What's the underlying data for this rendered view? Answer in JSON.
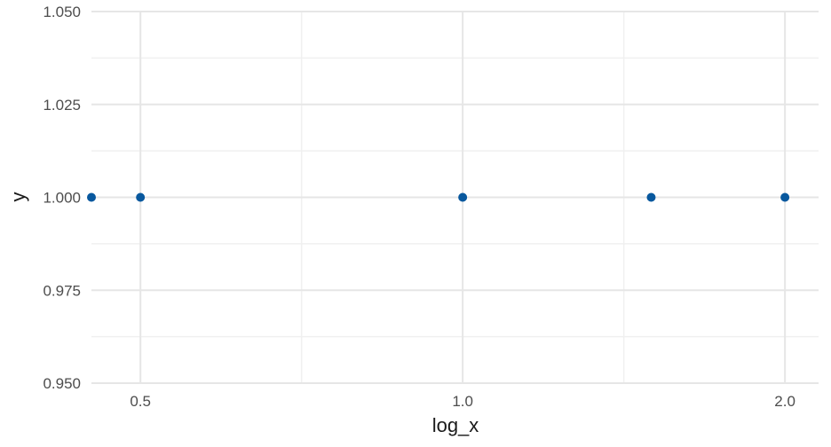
{
  "chart_data": {
    "type": "scatter",
    "title": "",
    "xlabel": "log_x",
    "ylabel": "y",
    "x_scale": "log",
    "xlim": [
      0.45,
      2.15
    ],
    "ylim": [
      0.95,
      1.05
    ],
    "x_ticks": [
      0.5,
      1.0,
      2.0
    ],
    "x_tick_labels": [
      "0.5",
      "1.0",
      "2.0"
    ],
    "y_ticks": [
      0.95,
      0.975,
      1.0,
      1.025,
      1.05
    ],
    "y_tick_labels": [
      "0.950",
      "0.975",
      "1.000",
      "1.025",
      "1.050"
    ],
    "grid": true,
    "legend": "none",
    "point_color": "#08589e",
    "points": [
      {
        "x": 0.45,
        "y": 1.0
      },
      {
        "x": 0.5,
        "y": 1.0
      },
      {
        "x": 1.0,
        "y": 1.0
      },
      {
        "x": 1.5,
        "y": 1.0
      },
      {
        "x": 2.0,
        "y": 1.0
      }
    ]
  }
}
